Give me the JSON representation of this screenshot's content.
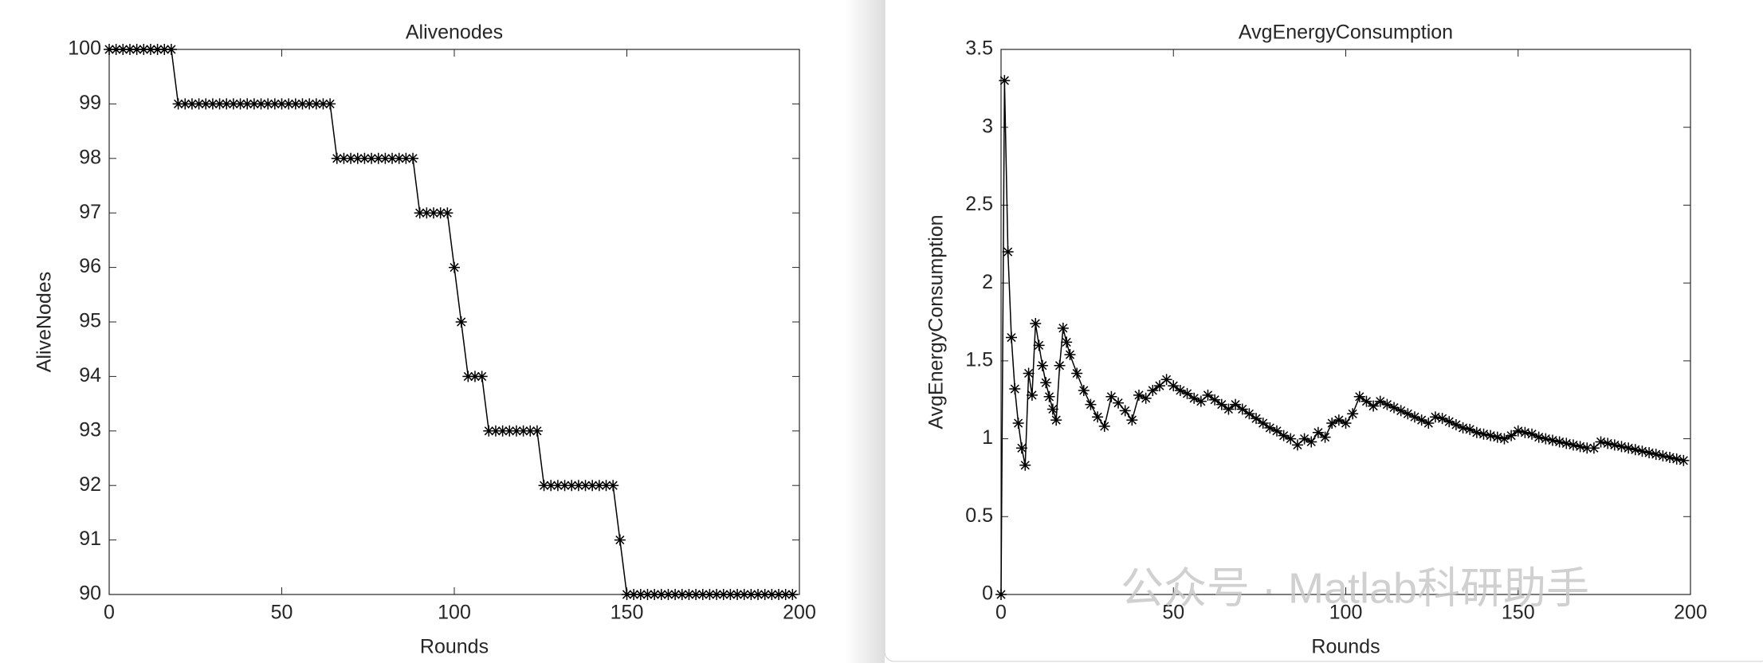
{
  "chart_data": [
    {
      "type": "line",
      "title": "Alivenodes",
      "xlabel": "Rounds",
      "ylabel": "AliveNodes",
      "color": "#000000",
      "marker": "*",
      "xlim": [
        0,
        200
      ],
      "xticks": [
        0,
        50,
        100,
        150,
        200
      ],
      "ylim": [
        90,
        100
      ],
      "yticks": [
        90,
        91,
        92,
        93,
        94,
        95,
        96,
        97,
        98,
        99,
        100
      ],
      "x": [
        0,
        2,
        4,
        6,
        8,
        10,
        12,
        14,
        16,
        18,
        20,
        22,
        24,
        26,
        28,
        30,
        32,
        34,
        36,
        38,
        40,
        42,
        44,
        46,
        48,
        50,
        52,
        54,
        56,
        58,
        60,
        62,
        64,
        66,
        68,
        70,
        72,
        74,
        76,
        78,
        80,
        82,
        84,
        86,
        88,
        90,
        92,
        94,
        96,
        98,
        100,
        102,
        104,
        106,
        108,
        110,
        112,
        114,
        116,
        118,
        120,
        122,
        124,
        126,
        128,
        130,
        132,
        134,
        136,
        138,
        140,
        142,
        144,
        146,
        148,
        150,
        152,
        154,
        156,
        158,
        160,
        162,
        164,
        166,
        168,
        170,
        172,
        174,
        176,
        178,
        180,
        182,
        184,
        186,
        188,
        190,
        192,
        194,
        196,
        198
      ],
      "values": [
        100,
        100,
        100,
        100,
        100,
        100,
        100,
        100,
        100,
        100,
        99,
        99,
        99,
        99,
        99,
        99,
        99,
        99,
        99,
        99,
        99,
        99,
        99,
        99,
        99,
        99,
        99,
        99,
        99,
        99,
        99,
        99,
        99,
        98,
        98,
        98,
        98,
        98,
        98,
        98,
        98,
        98,
        98,
        98,
        98,
        97,
        97,
        97,
        97,
        97,
        96,
        95,
        94,
        94,
        94,
        93,
        93,
        93,
        93,
        93,
        93,
        93,
        93,
        92,
        92,
        92,
        92,
        92,
        92,
        92,
        92,
        92,
        92,
        92,
        91,
        90,
        90,
        90,
        90,
        90,
        90,
        90,
        90,
        90,
        90,
        90,
        90,
        90,
        90,
        90,
        90,
        90,
        90,
        90,
        90,
        90,
        90,
        90,
        90,
        90
      ]
    },
    {
      "type": "line",
      "title": "AvgEnergyConsumption",
      "xlabel": "Rounds",
      "ylabel": "AvgEnergyConsumption",
      "color": "#000000",
      "marker": "*",
      "xlim": [
        0,
        200
      ],
      "xticks": [
        0,
        50,
        100,
        150,
        200
      ],
      "ylim": [
        0,
        3.5
      ],
      "yticks": [
        0,
        0.5,
        1,
        1.5,
        2,
        2.5,
        3,
        3.5
      ],
      "x": [
        0,
        1,
        2,
        3,
        4,
        5,
        6,
        7,
        8,
        9,
        10,
        11,
        12,
        13,
        14,
        15,
        16,
        17,
        18,
        19,
        20,
        22,
        24,
        26,
        28,
        30,
        32,
        34,
        36,
        38,
        40,
        42,
        44,
        46,
        48,
        50,
        52,
        54,
        56,
        58,
        60,
        62,
        64,
        66,
        68,
        70,
        72,
        74,
        76,
        78,
        80,
        82,
        84,
        86,
        88,
        90,
        92,
        94,
        96,
        98,
        100,
        102,
        104,
        106,
        108,
        110,
        112,
        114,
        116,
        118,
        120,
        122,
        124,
        126,
        128,
        130,
        132,
        134,
        136,
        138,
        140,
        142,
        144,
        146,
        148,
        150,
        152,
        154,
        156,
        158,
        160,
        162,
        164,
        166,
        168,
        170,
        172,
        174,
        176,
        178,
        180,
        182,
        184,
        186,
        188,
        190,
        192,
        194,
        196,
        198
      ],
      "values": [
        0,
        3.3,
        2.2,
        1.65,
        1.32,
        1.1,
        0.94,
        0.83,
        1.42,
        1.28,
        1.74,
        1.6,
        1.47,
        1.36,
        1.27,
        1.19,
        1.12,
        1.47,
        1.71,
        1.62,
        1.54,
        1.42,
        1.31,
        1.22,
        1.14,
        1.08,
        1.27,
        1.23,
        1.18,
        1.12,
        1.28,
        1.26,
        1.31,
        1.34,
        1.38,
        1.34,
        1.31,
        1.29,
        1.26,
        1.24,
        1.28,
        1.25,
        1.22,
        1.19,
        1.22,
        1.19,
        1.16,
        1.13,
        1.1,
        1.07,
        1.05,
        1.02,
        1.0,
        0.96,
        1.0,
        0.98,
        1.04,
        1.01,
        1.1,
        1.12,
        1.1,
        1.16,
        1.27,
        1.24,
        1.21,
        1.24,
        1.22,
        1.2,
        1.18,
        1.16,
        1.14,
        1.12,
        1.1,
        1.14,
        1.13,
        1.11,
        1.09,
        1.07,
        1.06,
        1.04,
        1.03,
        1.02,
        1.01,
        1.0,
        1.02,
        1.05,
        1.04,
        1.03,
        1.01,
        1.0,
        0.99,
        0.98,
        0.97,
        0.96,
        0.95,
        0.94,
        0.94,
        0.98,
        0.97,
        0.96,
        0.95,
        0.94,
        0.93,
        0.92,
        0.91,
        0.9,
        0.89,
        0.88,
        0.87,
        0.86
      ]
    }
  ],
  "watermark": "公众号 · Matlab科研助手"
}
